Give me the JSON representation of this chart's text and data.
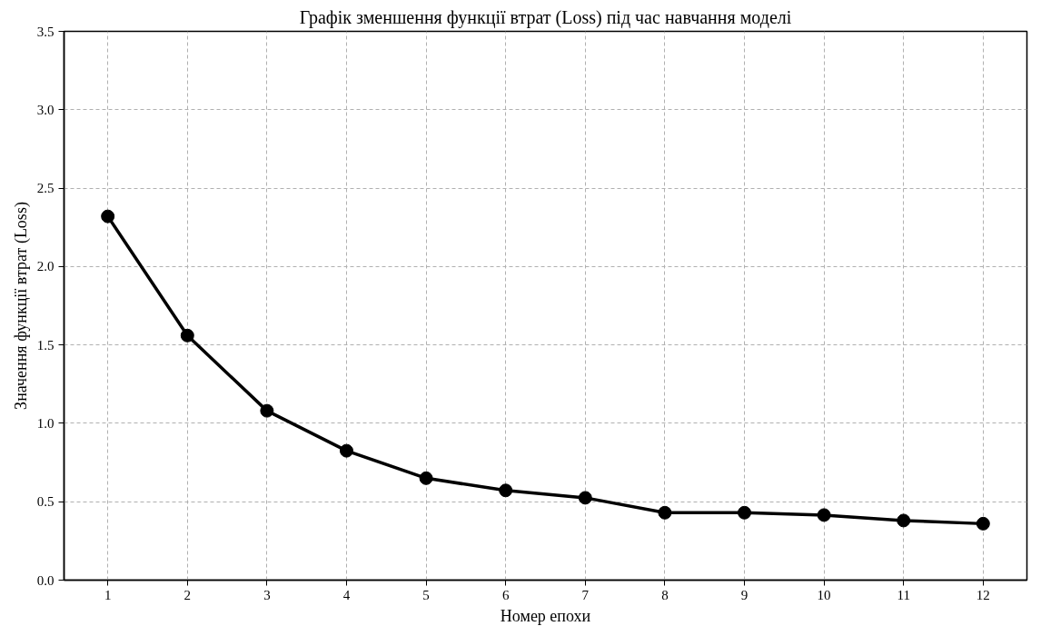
{
  "chart_data": {
    "type": "line",
    "title": "Графік зменшення функції втрат (Loss) під час навчання моделі",
    "xlabel": "Номер епохи",
    "ylabel": "Значення функції втрат (Loss)",
    "x": [
      1,
      2,
      3,
      4,
      5,
      6,
      7,
      8,
      9,
      10,
      11,
      12
    ],
    "series": [
      {
        "color": "#000000",
        "values": [
          2.32,
          1.56,
          1.08,
          0.825,
          0.65,
          0.572,
          0.525,
          0.43,
          0.43,
          0.415,
          0.38,
          0.36
        ]
      }
    ],
    "xlim": [
      0.45,
      12.55
    ],
    "xticks": [
      1,
      2,
      3,
      4,
      5,
      6,
      7,
      8,
      9,
      10,
      11,
      12
    ],
    "ylim": [
      0,
      3.5
    ],
    "yticks": [
      {
        "value": 0,
        "label": "0.0"
      },
      {
        "value": 0.5,
        "label": "0.5"
      },
      {
        "value": 1,
        "label": "1.0"
      },
      {
        "value": 1.5,
        "label": "1.5"
      },
      {
        "value": 2,
        "label": "2.0"
      },
      {
        "value": 2.5,
        "label": "2.5"
      },
      {
        "value": 3,
        "label": "3.0"
      },
      {
        "value": 3.5,
        "label": "3.5"
      }
    ],
    "grid": true,
    "marker": "circle",
    "line_style": "solid"
  }
}
